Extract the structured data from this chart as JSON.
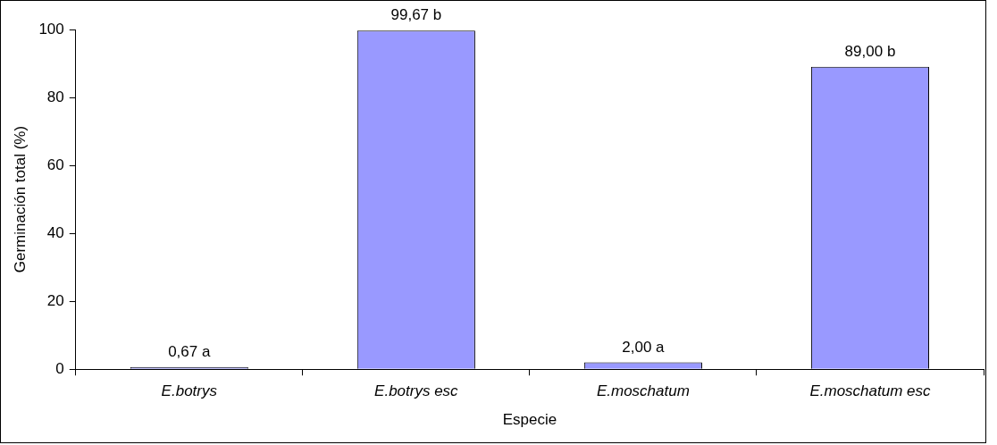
{
  "chart_data": {
    "type": "bar",
    "xlabel": "Especie",
    "ylabel": "Germinación total (%)",
    "categories": [
      "E.botrys",
      "E.botrys esc",
      "E.moschatum",
      "E.moschatum esc"
    ],
    "values": [
      0.67,
      99.67,
      2,
      89
    ],
    "value_labels": [
      "0,67 a",
      "99,67 b",
      "2,00 a",
      "89,00 b"
    ],
    "color": "#9999ff",
    "ylim": [
      0,
      100
    ],
    "yticks": [
      0,
      20,
      40,
      60,
      80,
      100
    ],
    "grid": false,
    "legend": false
  }
}
